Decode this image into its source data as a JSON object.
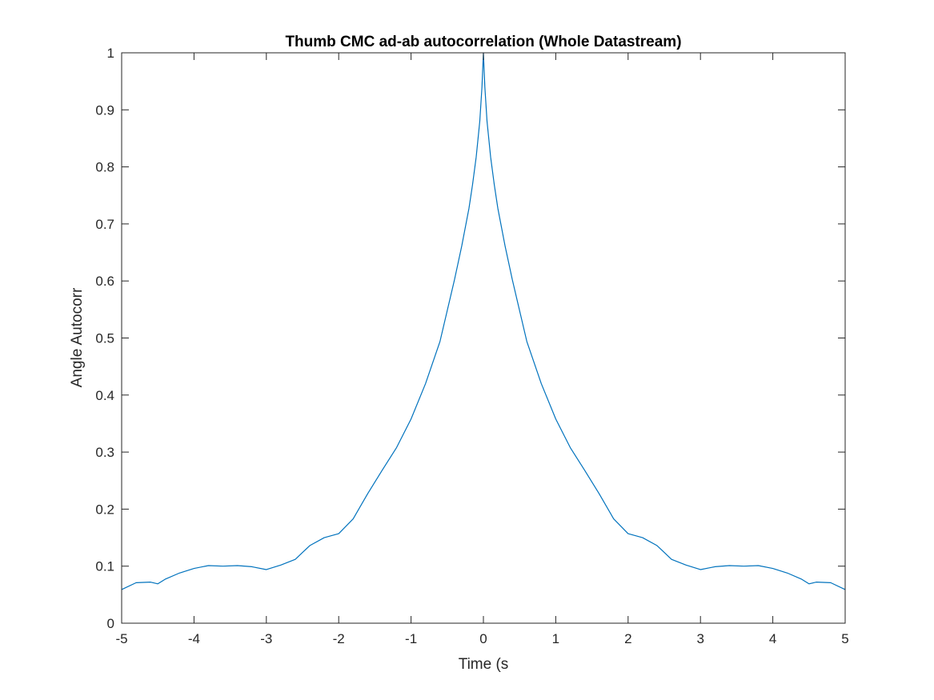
{
  "chart_data": {
    "type": "line",
    "title": "Thumb CMC ad-ab autocorrelation (Whole Datastream)",
    "xlabel": "Time (s",
    "ylabel": "Angle Autocorr",
    "xlim": [
      -5,
      5
    ],
    "ylim": [
      0,
      1
    ],
    "xticks": [
      "-5",
      "-4",
      "-3",
      "-2",
      "-1",
      "0",
      "1",
      "2",
      "3",
      "4",
      "5"
    ],
    "yticks": [
      "0",
      "0.1",
      "0.2",
      "0.3",
      "0.4",
      "0.5",
      "0.6",
      "0.7",
      "0.8",
      "0.9",
      "1"
    ],
    "grid": false,
    "legend": "none",
    "series": [
      {
        "color": "#0072BD",
        "x": [
          -5,
          -4.8,
          -4.6,
          -4.5,
          -4.4,
          -4.2,
          -4.0,
          -3.8,
          -3.6,
          -3.4,
          -3.2,
          -3.0,
          -2.8,
          -2.6,
          -2.5,
          -2.4,
          -2.2,
          -2.0,
          -1.8,
          -1.6,
          -1.4,
          -1.2,
          -1.0,
          -0.8,
          -0.6,
          -0.5,
          -0.4,
          -0.3,
          -0.2,
          -0.15,
          -0.1,
          -0.05,
          -0.02,
          0,
          0.02,
          0.05,
          0.1,
          0.15,
          0.2,
          0.3,
          0.4,
          0.5,
          0.6,
          0.8,
          1.0,
          1.2,
          1.4,
          1.6,
          1.8,
          2.0,
          2.2,
          2.4,
          2.5,
          2.6,
          2.8,
          3.0,
          3.2,
          3.4,
          3.6,
          3.8,
          4.0,
          4.2,
          4.4,
          4.5,
          4.6,
          4.8,
          5
        ],
        "y": [
          0.059,
          0.071,
          0.072,
          0.069,
          0.077,
          0.088,
          0.096,
          0.101,
          0.1,
          0.101,
          0.099,
          0.094,
          0.102,
          0.112,
          0.124,
          0.136,
          0.15,
          0.157,
          0.183,
          0.227,
          0.268,
          0.308,
          0.358,
          0.42,
          0.494,
          0.548,
          0.602,
          0.661,
          0.727,
          0.769,
          0.817,
          0.88,
          0.94,
          1.0,
          0.94,
          0.88,
          0.817,
          0.769,
          0.727,
          0.661,
          0.602,
          0.548,
          0.494,
          0.42,
          0.358,
          0.308,
          0.268,
          0.227,
          0.183,
          0.157,
          0.15,
          0.136,
          0.124,
          0.112,
          0.102,
          0.094,
          0.099,
          0.101,
          0.1,
          0.101,
          0.096,
          0.088,
          0.077,
          0.069,
          0.072,
          0.071,
          0.059
        ]
      }
    ]
  }
}
